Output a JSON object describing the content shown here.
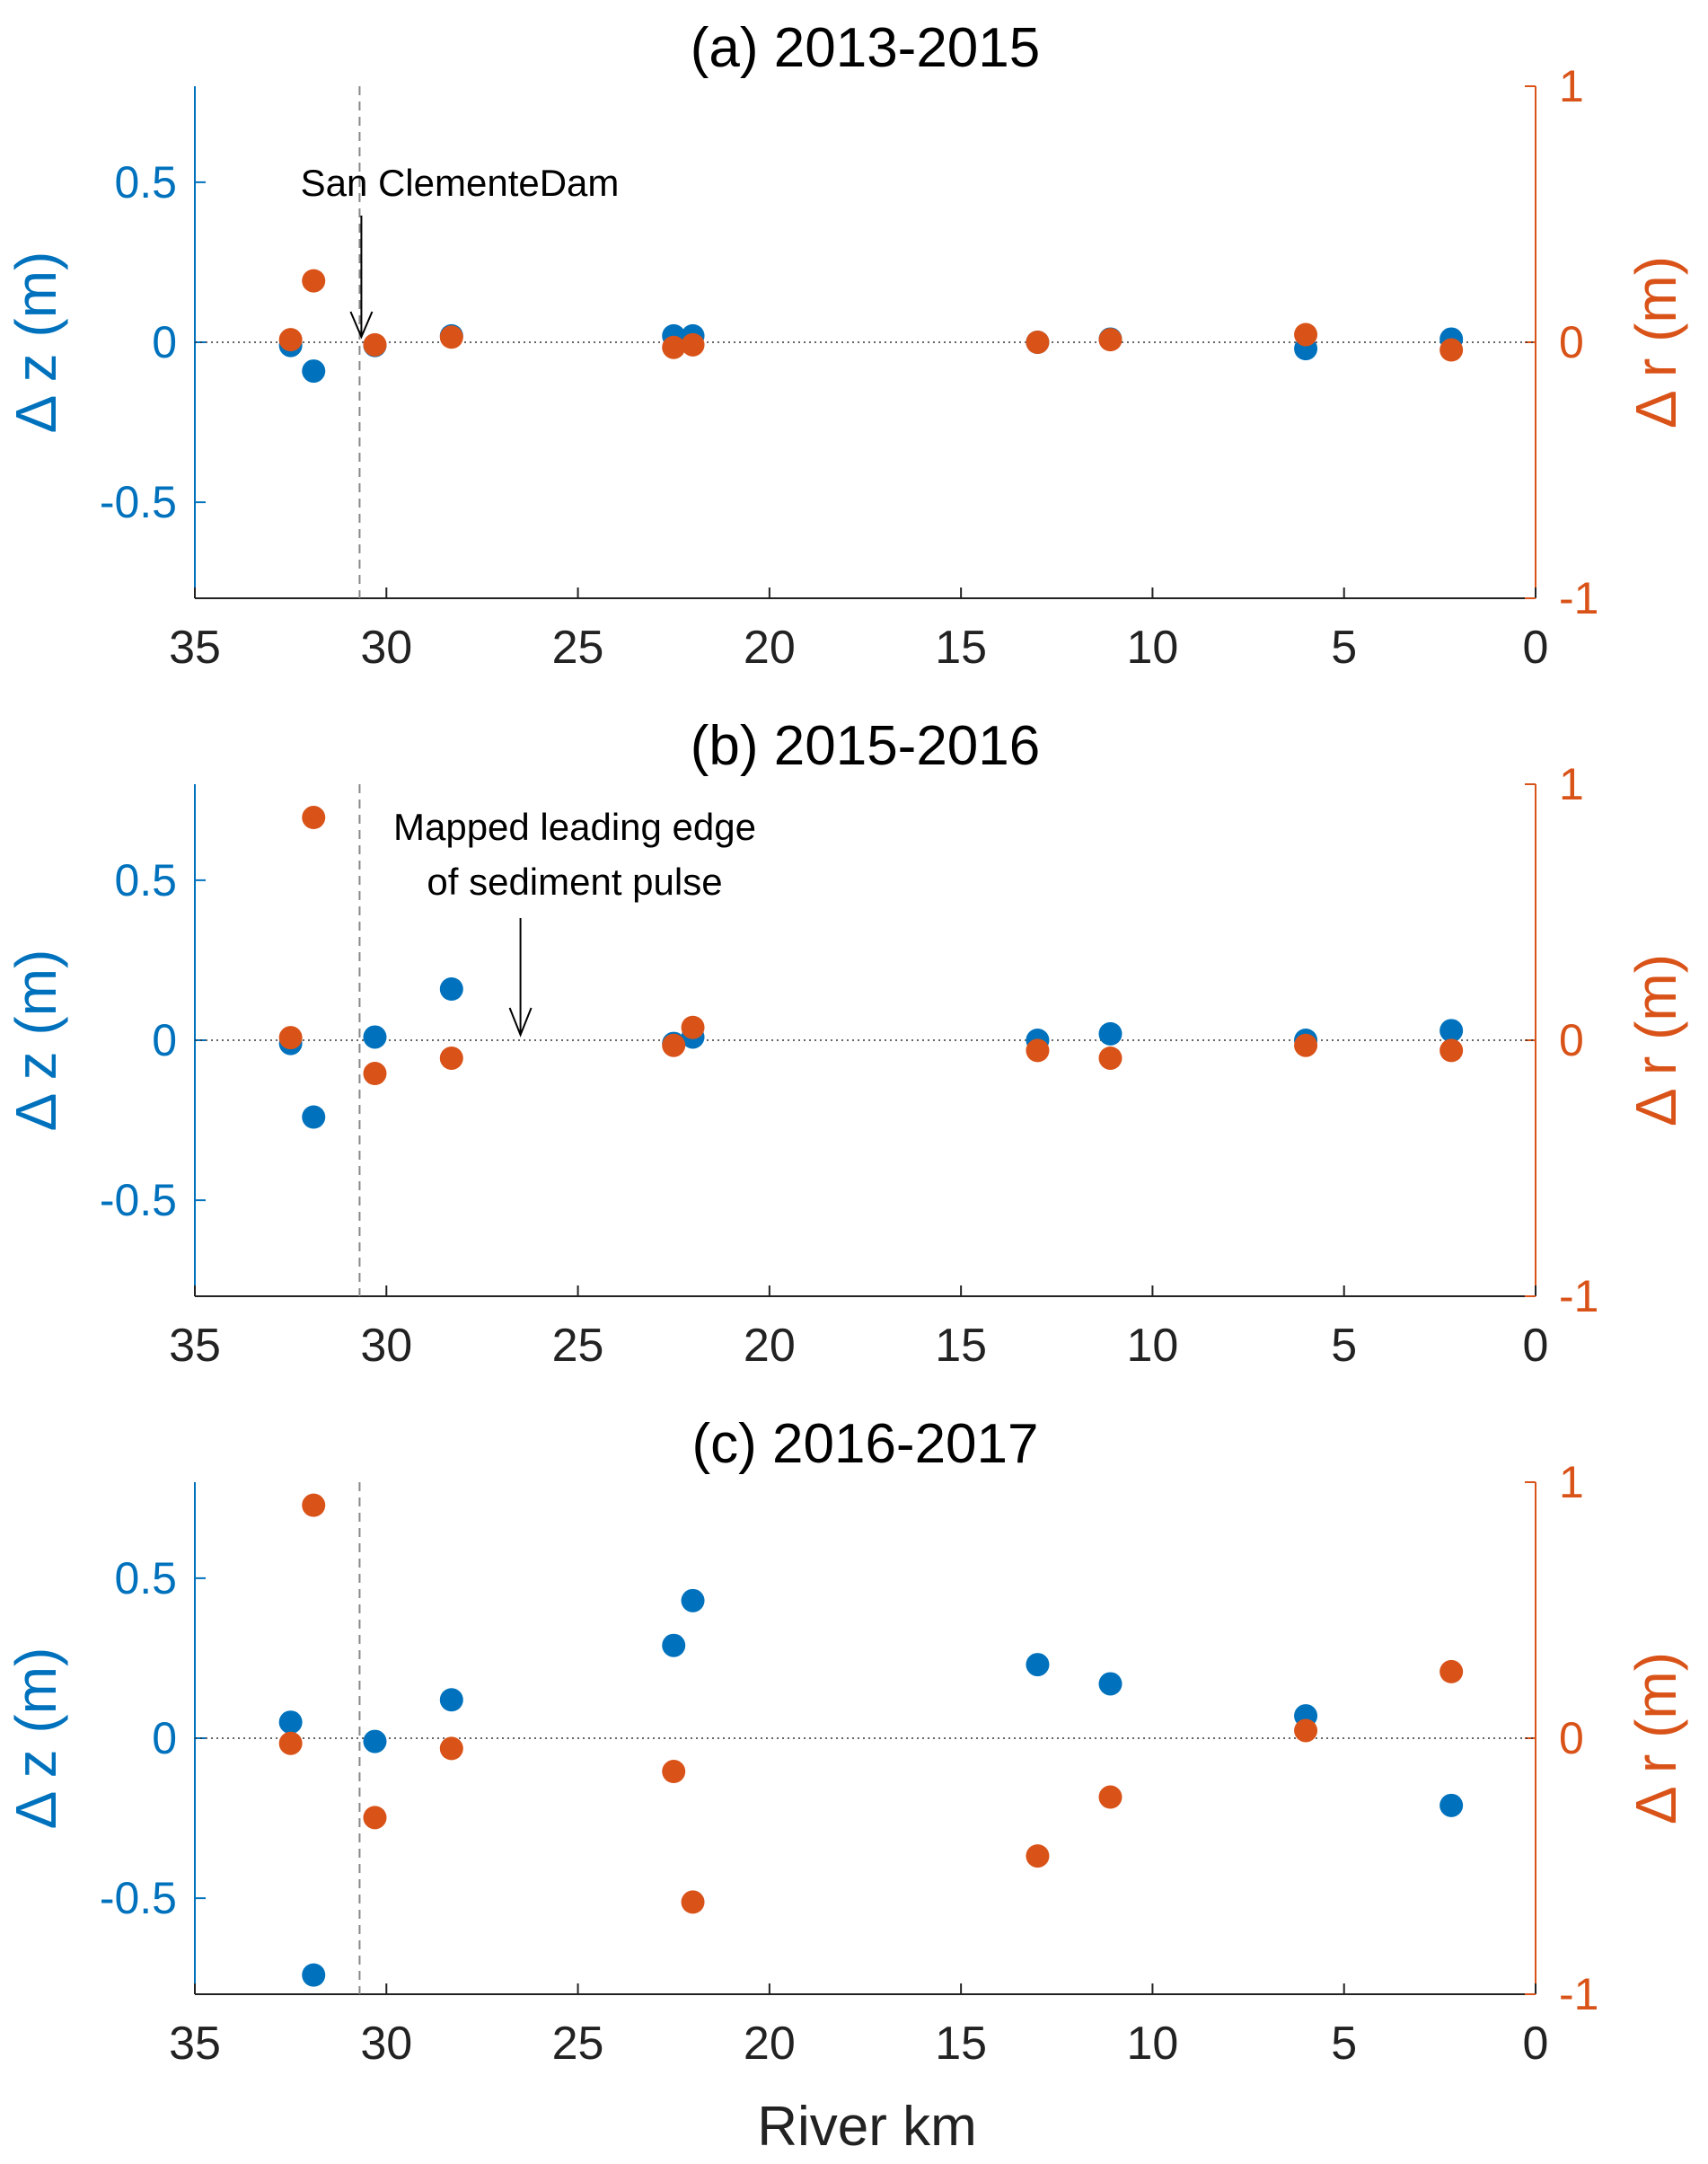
{
  "colors": {
    "dz": "#0072BD",
    "dr": "#D95319",
    "axis": "#222222",
    "dam_line": "#888888"
  },
  "chart_data": [
    {
      "type": "scatter",
      "title": "(a) 2013-2015",
      "xlabel": "",
      "ylabel_left": "Δ z (m)",
      "ylabel_right": "Δ r (m)",
      "xlim": [
        35,
        0
      ],
      "xticks": [
        "35",
        "30",
        "25",
        "20",
        "15",
        "10",
        "5",
        "0"
      ],
      "ylim_left": [
        -0.8,
        0.8
      ],
      "yticks_left": [
        "0.5",
        "0",
        "-0.5"
      ],
      "ylim_right": [
        -1,
        1
      ],
      "yticks_right": [
        "1",
        "0",
        "-1"
      ],
      "dam_x": 30.7,
      "annotation": {
        "lines": [
          "San ClementeDam"
        ],
        "x": 30.7
      },
      "series": [
        {
          "x": [
            32.5,
            31.9,
            30.3,
            28.3,
            22.5,
            22.0,
            13.0,
            11.1,
            6.0,
            2.2
          ],
          "y": [
            -0.01,
            -0.09,
            -0.01,
            0.02,
            0.02,
            0.02,
            0.0,
            0.01,
            -0.02,
            0.01
          ]
        },
        {
          "x": [
            32.5,
            31.9,
            30.3,
            28.3,
            22.5,
            22.0,
            13.0,
            11.1,
            6.0,
            2.2
          ],
          "y": [
            0.01,
            0.24,
            -0.01,
            0.02,
            -0.02,
            -0.01,
            0.0,
            0.01,
            0.03,
            -0.03
          ]
        }
      ]
    },
    {
      "type": "scatter",
      "title": "(b) 2015-2016",
      "xlabel": "",
      "ylabel_left": "Δ z (m)",
      "ylabel_right": "Δ r (m)",
      "xlim": [
        35,
        0
      ],
      "xticks": [
        "35",
        "30",
        "25",
        "20",
        "15",
        "10",
        "5",
        "0"
      ],
      "ylim_left": [
        -0.8,
        0.8
      ],
      "yticks_left": [
        "0.5",
        "0",
        "-0.5"
      ],
      "ylim_right": [
        -1,
        1
      ],
      "yticks_right": [
        "1",
        "0",
        "-1"
      ],
      "dam_x": 30.7,
      "annotation": {
        "lines": [
          "Mapped leading edge",
          "of sediment pulse"
        ],
        "x": 26.5
      },
      "series": [
        {
          "x": [
            32.5,
            31.9,
            30.3,
            28.3,
            22.5,
            22.0,
            13.0,
            11.1,
            6.0,
            2.2
          ],
          "y": [
            -0.01,
            -0.24,
            0.01,
            0.16,
            -0.01,
            0.01,
            0.0,
            0.02,
            0.0,
            0.03
          ]
        },
        {
          "x": [
            32.5,
            31.9,
            30.3,
            28.3,
            22.5,
            22.0,
            13.0,
            11.1,
            6.0,
            2.2
          ],
          "y": [
            0.01,
            0.87,
            -0.13,
            -0.07,
            -0.02,
            0.05,
            -0.04,
            -0.07,
            -0.02,
            -0.04
          ]
        }
      ]
    },
    {
      "type": "scatter",
      "title": "(c) 2016-2017",
      "xlabel": "River km",
      "ylabel_left": "Δ z (m)",
      "ylabel_right": "Δ r (m)",
      "xlim": [
        35,
        0
      ],
      "xticks": [
        "35",
        "30",
        "25",
        "20",
        "15",
        "10",
        "5",
        "0"
      ],
      "ylim_left": [
        -0.8,
        0.8
      ],
      "yticks_left": [
        "0.5",
        "0",
        "-0.5"
      ],
      "ylim_right": [
        -1,
        1
      ],
      "yticks_right": [
        "1",
        "0",
        "-1"
      ],
      "dam_x": 30.7,
      "annotation": null,
      "series": [
        {
          "x": [
            32.5,
            31.9,
            30.3,
            28.3,
            22.5,
            22.0,
            13.0,
            11.1,
            6.0,
            2.2
          ],
          "y": [
            0.05,
            -0.74,
            -0.01,
            0.12,
            0.29,
            0.43,
            0.23,
            0.17,
            0.07,
            -0.21
          ]
        },
        {
          "x": [
            32.5,
            31.9,
            30.3,
            28.3,
            22.5,
            22.0,
            13.0,
            11.1,
            6.0,
            2.2
          ],
          "y": [
            -0.02,
            0.91,
            -0.31,
            -0.04,
            -0.13,
            -0.64,
            -0.46,
            -0.23,
            0.03,
            0.26
          ]
        }
      ]
    }
  ]
}
